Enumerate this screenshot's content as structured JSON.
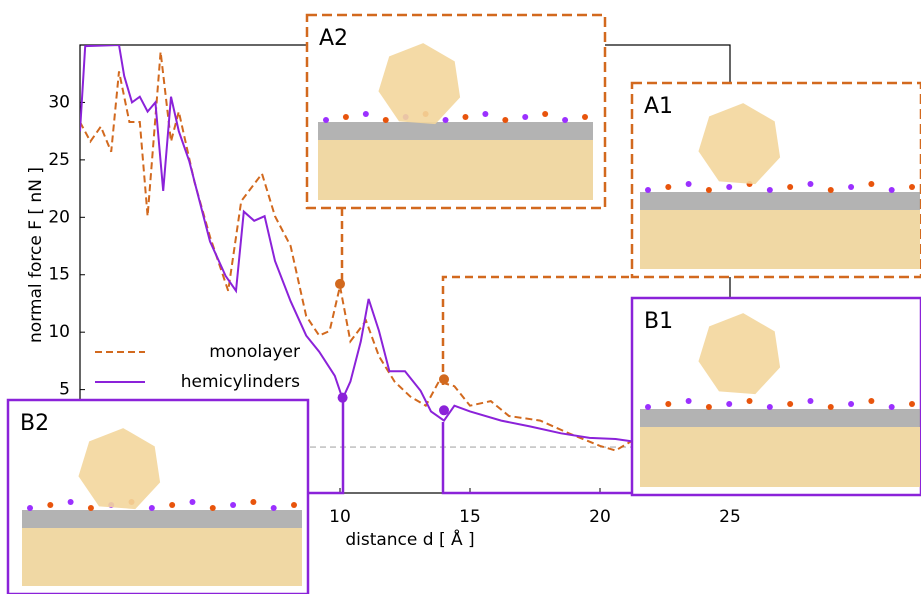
{
  "chart_data": {
    "type": "line",
    "x_label": "distance d [ Å ]",
    "y_label": "normal force F [ nN ]",
    "xlim": [
      0,
      25
    ],
    "ylim": [
      -4,
      35
    ],
    "xticks": [
      10,
      15,
      20,
      25
    ],
    "yticks": [
      5,
      10,
      15,
      20,
      25,
      30
    ],
    "reference_line": 0,
    "grid": false,
    "legend": "center left",
    "series": [
      {
        "name": "monolayer",
        "color": "#d2691e",
        "dash": true,
        "x": [
          0,
          0.4,
          0.8,
          1.2,
          1.5,
          1.9,
          2.3,
          2.6,
          3.1,
          3.5,
          3.8,
          4.4,
          5.0,
          5.7,
          6.2,
          7.0,
          7.5,
          8.1,
          8.7,
          9.2,
          9.6,
          10.0,
          10.4,
          11.0,
          11.5,
          12.1,
          12.7,
          13.3,
          13.8,
          14.4,
          15.0,
          15.8,
          16.5,
          17.7,
          18.8,
          20.0,
          20.6,
          21.2
        ],
        "values": [
          28.3,
          26.6,
          27.9,
          25.7,
          32.7,
          28.3,
          28.3,
          20.1,
          34.4,
          26.6,
          29.2,
          23.1,
          18.3,
          13.6,
          21.4,
          23.8,
          20.1,
          17.5,
          11.4,
          9.7,
          10.1,
          14.0,
          9.2,
          11.0,
          7.9,
          5.7,
          4.4,
          3.6,
          5.7,
          5.3,
          3.6,
          4.0,
          2.7,
          2.3,
          1.2,
          0.1,
          -0.3,
          0.5
        ],
        "points_x": [
          10.0,
          14.0
        ],
        "points_y": [
          14.2,
          5.9
        ]
      },
      {
        "name": "hemicylinders",
        "color": "#8b22d9",
        "dash": false,
        "x": [
          0,
          0.2,
          1.5,
          1.7,
          2.0,
          2.3,
          2.6,
          2.9,
          3.2,
          3.5,
          3.8,
          4.2,
          4.6,
          5.0,
          5.6,
          6.0,
          6.3,
          6.7,
          7.1,
          7.5,
          8.1,
          8.7,
          9.2,
          9.8,
          10.1,
          10.4,
          10.8,
          11.1,
          11.5,
          11.9,
          12.5,
          13.1,
          13.5,
          14.0,
          14.4,
          15.0,
          16.2,
          17.3,
          18.5,
          19.6,
          20.6,
          21.2
        ],
        "values": [
          27.5,
          34.9,
          35.0,
          32.3,
          30.0,
          30.5,
          29.2,
          30.0,
          22.3,
          30.5,
          27.5,
          24.9,
          21.4,
          17.9,
          14.9,
          13.6,
          20.5,
          19.7,
          20.1,
          16.2,
          12.7,
          9.7,
          8.3,
          6.2,
          4.2,
          5.7,
          9.2,
          12.9,
          10.1,
          6.6,
          6.6,
          4.9,
          3.1,
          2.3,
          3.6,
          3.1,
          2.3,
          1.8,
          1.2,
          0.8,
          0.7,
          0.5
        ],
        "points_x": [
          10.1,
          14.0
        ],
        "points_y": [
          4.3,
          3.2
        ]
      }
    ],
    "insets": [
      "A2",
      "A1",
      "B1",
      "B2"
    ]
  }
}
